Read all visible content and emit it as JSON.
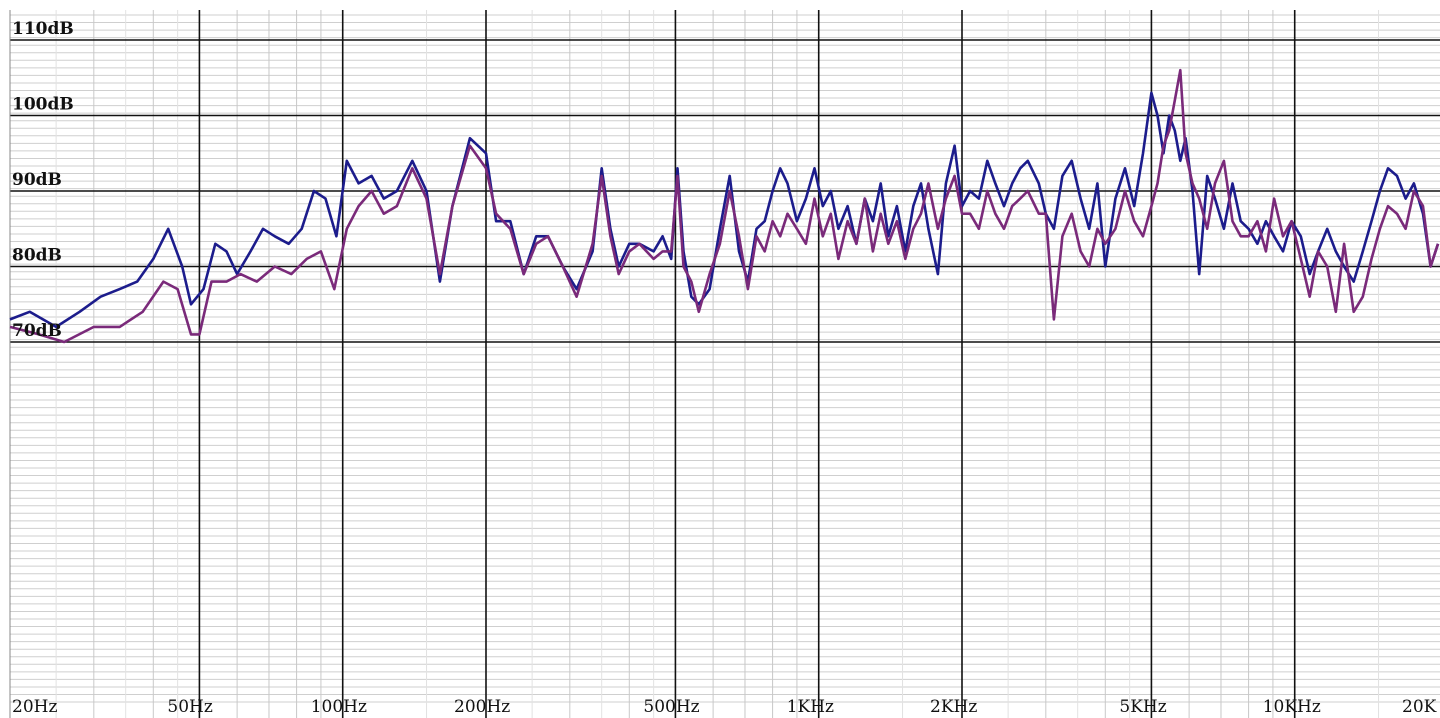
{
  "chart_data": {
    "type": "line",
    "title": "",
    "xlabel": "",
    "ylabel": "",
    "x_scale": "log",
    "xlim": [
      20,
      20000
    ],
    "ylim": [
      70,
      110
    ],
    "grid": true,
    "y_ticks": [
      {
        "value": 110,
        "label": "110dB"
      },
      {
        "value": 100,
        "label": "100dB"
      },
      {
        "value": 90,
        "label": "90dB"
      },
      {
        "value": 80,
        "label": "80dB"
      },
      {
        "value": 70,
        "label": "70dB"
      }
    ],
    "x_ticks": [
      {
        "value": 20,
        "label": "20Hz"
      },
      {
        "value": 50,
        "label": "50Hz"
      },
      {
        "value": 100,
        "label": "100Hz"
      },
      {
        "value": 200,
        "label": "200Hz"
      },
      {
        "value": 500,
        "label": "500Hz"
      },
      {
        "value": 1000,
        "label": "1KHz"
      },
      {
        "value": 2000,
        "label": "2KHz"
      },
      {
        "value": 5000,
        "label": "5KHz"
      },
      {
        "value": 10000,
        "label": "10KHz"
      },
      {
        "value": 20000,
        "label": "20K"
      }
    ],
    "series": [
      {
        "color": "#1c1c8c",
        "points": [
          [
            20,
            73
          ],
          [
            22,
            74
          ],
          [
            25,
            72
          ],
          [
            28,
            74
          ],
          [
            31,
            76
          ],
          [
            34,
            77
          ],
          [
            37,
            78
          ],
          [
            40,
            81
          ],
          [
            43,
            85
          ],
          [
            46,
            80
          ],
          [
            48,
            75
          ],
          [
            51,
            77
          ],
          [
            54,
            83
          ],
          [
            57,
            82
          ],
          [
            60,
            79
          ],
          [
            64,
            82
          ],
          [
            68,
            85
          ],
          [
            72,
            84
          ],
          [
            77,
            83
          ],
          [
            82,
            85
          ],
          [
            87,
            90
          ],
          [
            92,
            89
          ],
          [
            97,
            84
          ],
          [
            102,
            94
          ],
          [
            108,
            91
          ],
          [
            115,
            92
          ],
          [
            122,
            89
          ],
          [
            130,
            90
          ],
          [
            140,
            94
          ],
          [
            150,
            90
          ],
          [
            160,
            78
          ],
          [
            170,
            88
          ],
          [
            185,
            97
          ],
          [
            200,
            95
          ],
          [
            210,
            86
          ],
          [
            225,
            86
          ],
          [
            240,
            79
          ],
          [
            255,
            84
          ],
          [
            270,
            84
          ],
          [
            290,
            80
          ],
          [
            310,
            77
          ],
          [
            335,
            82
          ],
          [
            350,
            93
          ],
          [
            365,
            85
          ],
          [
            380,
            80
          ],
          [
            400,
            83
          ],
          [
            420,
            83
          ],
          [
            450,
            82
          ],
          [
            470,
            84
          ],
          [
            490,
            81
          ],
          [
            505,
            93
          ],
          [
            520,
            82
          ],
          [
            540,
            76
          ],
          [
            560,
            75
          ],
          [
            590,
            77
          ],
          [
            620,
            85
          ],
          [
            650,
            92
          ],
          [
            680,
            82
          ],
          [
            710,
            78
          ],
          [
            740,
            85
          ],
          [
            770,
            86
          ],
          [
            800,
            90
          ],
          [
            830,
            93
          ],
          [
            860,
            91
          ],
          [
            900,
            86
          ],
          [
            940,
            89
          ],
          [
            980,
            93
          ],
          [
            1020,
            88
          ],
          [
            1060,
            90
          ],
          [
            1100,
            85
          ],
          [
            1150,
            88
          ],
          [
            1200,
            83
          ],
          [
            1250,
            89
          ],
          [
            1300,
            86
          ],
          [
            1350,
            91
          ],
          [
            1400,
            84
          ],
          [
            1460,
            88
          ],
          [
            1520,
            82
          ],
          [
            1580,
            88
          ],
          [
            1640,
            91
          ],
          [
            1700,
            85
          ],
          [
            1780,
            79
          ],
          [
            1850,
            91
          ],
          [
            1930,
            96
          ],
          [
            2000,
            88
          ],
          [
            2080,
            90
          ],
          [
            2170,
            89
          ],
          [
            2260,
            94
          ],
          [
            2350,
            91
          ],
          [
            2450,
            88
          ],
          [
            2550,
            91
          ],
          [
            2650,
            93
          ],
          [
            2750,
            94
          ],
          [
            2900,
            91
          ],
          [
            3000,
            87
          ],
          [
            3120,
            85
          ],
          [
            3250,
            92
          ],
          [
            3400,
            94
          ],
          [
            3550,
            89
          ],
          [
            3700,
            85
          ],
          [
            3850,
            91
          ],
          [
            4000,
            80
          ],
          [
            4200,
            89
          ],
          [
            4400,
            93
          ],
          [
            4600,
            88
          ],
          [
            4800,
            95
          ],
          [
            5000,
            103
          ],
          [
            5150,
            100
          ],
          [
            5300,
            95
          ],
          [
            5450,
            100
          ],
          [
            5600,
            98
          ],
          [
            5750,
            94
          ],
          [
            5900,
            97
          ],
          [
            6100,
            90
          ],
          [
            6300,
            79
          ],
          [
            6550,
            92
          ],
          [
            6800,
            89
          ],
          [
            7100,
            85
          ],
          [
            7400,
            91
          ],
          [
            7700,
            86
          ],
          [
            8000,
            85
          ],
          [
            8350,
            83
          ],
          [
            8700,
            86
          ],
          [
            9050,
            84
          ],
          [
            9450,
            82
          ],
          [
            9850,
            86
          ],
          [
            10300,
            84
          ],
          [
            10750,
            79
          ],
          [
            11200,
            82
          ],
          [
            11700,
            85
          ],
          [
            12200,
            82
          ],
          [
            12700,
            80
          ],
          [
            13300,
            78
          ],
          [
            13900,
            82
          ],
          [
            14500,
            86
          ],
          [
            15100,
            90
          ],
          [
            15700,
            93
          ],
          [
            16400,
            92
          ],
          [
            17100,
            89
          ],
          [
            17800,
            91
          ],
          [
            18600,
            87
          ],
          [
            19300,
            80
          ],
          [
            20000,
            83
          ]
        ]
      },
      {
        "color": "#7a2a7a",
        "points": [
          [
            20,
            72
          ],
          [
            23,
            71
          ],
          [
            26,
            70
          ],
          [
            30,
            72
          ],
          [
            34,
            72
          ],
          [
            38,
            74
          ],
          [
            42,
            78
          ],
          [
            45,
            77
          ],
          [
            48,
            71
          ],
          [
            50,
            71
          ],
          [
            53,
            78
          ],
          [
            57,
            78
          ],
          [
            61,
            79
          ],
          [
            66,
            78
          ],
          [
            72,
            80
          ],
          [
            78,
            79
          ],
          [
            84,
            81
          ],
          [
            90,
            82
          ],
          [
            96,
            77
          ],
          [
            102,
            85
          ],
          [
            108,
            88
          ],
          [
            115,
            90
          ],
          [
            122,
            87
          ],
          [
            130,
            88
          ],
          [
            140,
            93
          ],
          [
            150,
            89
          ],
          [
            160,
            79
          ],
          [
            170,
            88
          ],
          [
            185,
            96
          ],
          [
            200,
            93
          ],
          [
            210,
            87
          ],
          [
            225,
            85
          ],
          [
            240,
            79
          ],
          [
            255,
            83
          ],
          [
            270,
            84
          ],
          [
            290,
            80
          ],
          [
            310,
            76
          ],
          [
            335,
            83
          ],
          [
            350,
            92
          ],
          [
            365,
            84
          ],
          [
            380,
            79
          ],
          [
            400,
            82
          ],
          [
            420,
            83
          ],
          [
            450,
            81
          ],
          [
            470,
            82
          ],
          [
            490,
            82
          ],
          [
            505,
            92
          ],
          [
            520,
            80
          ],
          [
            540,
            78
          ],
          [
            560,
            74
          ],
          [
            590,
            79
          ],
          [
            620,
            83
          ],
          [
            650,
            90
          ],
          [
            680,
            84
          ],
          [
            710,
            77
          ],
          [
            740,
            84
          ],
          [
            770,
            82
          ],
          [
            800,
            86
          ],
          [
            830,
            84
          ],
          [
            860,
            87
          ],
          [
            900,
            85
          ],
          [
            940,
            83
          ],
          [
            980,
            89
          ],
          [
            1020,
            84
          ],
          [
            1060,
            87
          ],
          [
            1100,
            81
          ],
          [
            1150,
            86
          ],
          [
            1200,
            83
          ],
          [
            1250,
            89
          ],
          [
            1300,
            82
          ],
          [
            1350,
            87
          ],
          [
            1400,
            83
          ],
          [
            1460,
            86
          ],
          [
            1520,
            81
          ],
          [
            1580,
            85
          ],
          [
            1640,
            87
          ],
          [
            1700,
            91
          ],
          [
            1780,
            85
          ],
          [
            1850,
            89
          ],
          [
            1930,
            92
          ],
          [
            2000,
            87
          ],
          [
            2080,
            87
          ],
          [
            2170,
            85
          ],
          [
            2260,
            90
          ],
          [
            2350,
            87
          ],
          [
            2450,
            85
          ],
          [
            2550,
            88
          ],
          [
            2650,
            89
          ],
          [
            2750,
            90
          ],
          [
            2900,
            87
          ],
          [
            3000,
            87
          ],
          [
            3120,
            73
          ],
          [
            3250,
            84
          ],
          [
            3400,
            87
          ],
          [
            3550,
            82
          ],
          [
            3700,
            80
          ],
          [
            3850,
            85
          ],
          [
            4000,
            83
          ],
          [
            4200,
            85
          ],
          [
            4400,
            90
          ],
          [
            4600,
            86
          ],
          [
            4800,
            84
          ],
          [
            5000,
            88
          ],
          [
            5150,
            91
          ],
          [
            5300,
            96
          ],
          [
            5450,
            98
          ],
          [
            5600,
            102
          ],
          [
            5750,
            106
          ],
          [
            5900,
            95
          ],
          [
            6100,
            91
          ],
          [
            6300,
            89
          ],
          [
            6550,
            85
          ],
          [
            6800,
            91
          ],
          [
            7100,
            94
          ],
          [
            7400,
            86
          ],
          [
            7700,
            84
          ],
          [
            8000,
            84
          ],
          [
            8350,
            86
          ],
          [
            8700,
            82
          ],
          [
            9050,
            89
          ],
          [
            9450,
            84
          ],
          [
            9850,
            86
          ],
          [
            10300,
            81
          ],
          [
            10750,
            76
          ],
          [
            11200,
            82
          ],
          [
            11700,
            80
          ],
          [
            12200,
            74
          ],
          [
            12700,
            83
          ],
          [
            13300,
            74
          ],
          [
            13900,
            76
          ],
          [
            14500,
            81
          ],
          [
            15100,
            85
          ],
          [
            15700,
            88
          ],
          [
            16400,
            87
          ],
          [
            17100,
            85
          ],
          [
            17800,
            90
          ],
          [
            18600,
            88
          ],
          [
            19300,
            80
          ],
          [
            20000,
            83
          ]
        ]
      }
    ]
  }
}
